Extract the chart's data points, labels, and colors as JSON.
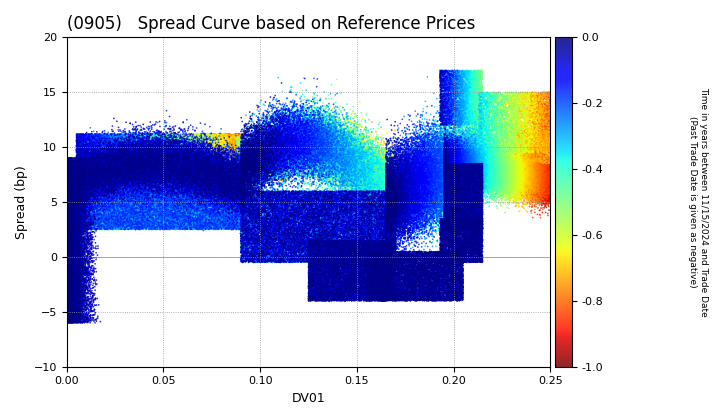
{
  "title": "(0905)   Spread Curve based on Reference Prices",
  "xlabel": "DV01",
  "ylabel": "Spread (bp)",
  "xlim": [
    0.0,
    0.25
  ],
  "ylim": [
    -10.0,
    20.0
  ],
  "yticks": [
    -10,
    -5,
    0,
    5,
    10,
    15,
    20
  ],
  "xticks": [
    0.0,
    0.05,
    0.1,
    0.15,
    0.2,
    0.25
  ],
  "cbar_label": "Time in years between 11/15/2024 and Trade Date\n(Past Trade Date is given as negative)",
  "cmap": "jet_r",
  "clim": [
    -1.0,
    0.0
  ],
  "cticks": [
    0.0,
    -0.2,
    -0.4,
    -0.6,
    -0.8,
    -1.0
  ],
  "grid_color": "#999999",
  "bg_color": "#ffffff",
  "title_fontsize": 12,
  "label_fontsize": 9
}
